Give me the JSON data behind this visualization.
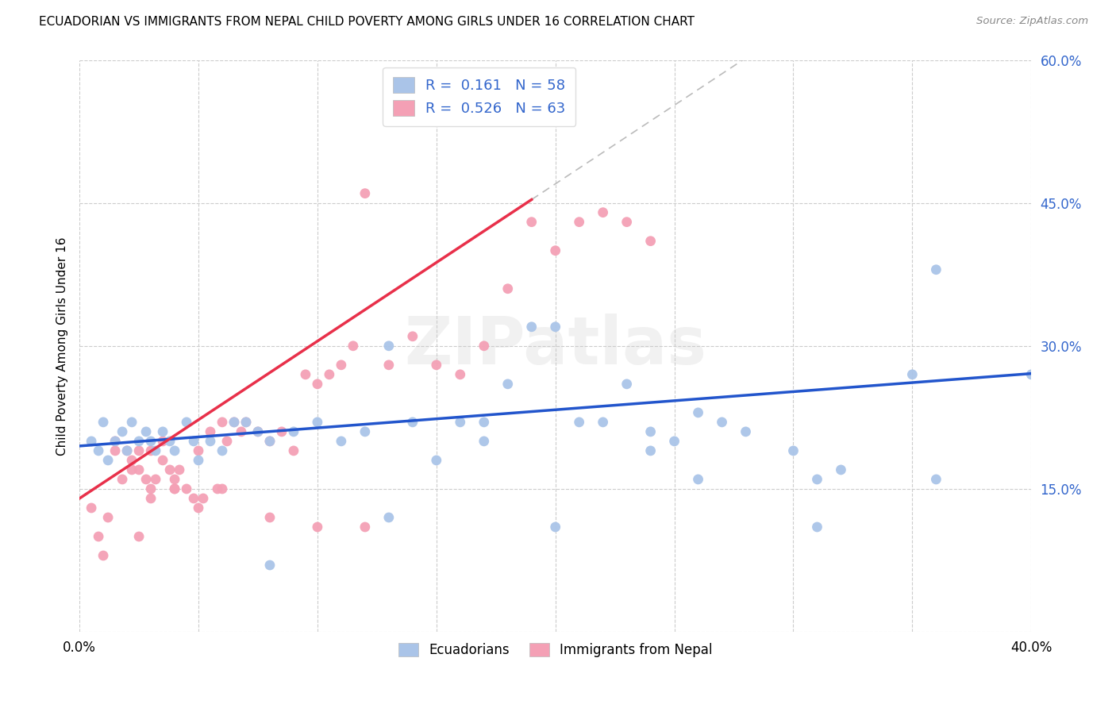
{
  "title": "ECUADORIAN VS IMMIGRANTS FROM NEPAL CHILD POVERTY AMONG GIRLS UNDER 16 CORRELATION CHART",
  "source": "Source: ZipAtlas.com",
  "ylabel": "Child Poverty Among Girls Under 16",
  "xlim": [
    0,
    0.4
  ],
  "ylim": [
    0,
    0.6
  ],
  "r_ecuadorian": 0.161,
  "n_ecuadorian": 58,
  "r_nepal": 0.526,
  "n_nepal": 63,
  "color_ecuadorian": "#aac4e8",
  "color_nepal": "#f4a0b5",
  "line_color_ecuadorian": "#2255cc",
  "line_color_nepal": "#e8304a",
  "blue_intercept": 0.195,
  "blue_slope": 0.19,
  "pink_intercept": 0.14,
  "pink_slope": 1.65,
  "blue_scatter_x": [
    0.005,
    0.008,
    0.01,
    0.012,
    0.015,
    0.018,
    0.02,
    0.022,
    0.025,
    0.028,
    0.03,
    0.032,
    0.035,
    0.038,
    0.04,
    0.045,
    0.048,
    0.05,
    0.055,
    0.06,
    0.065,
    0.07,
    0.075,
    0.08,
    0.09,
    0.1,
    0.11,
    0.12,
    0.13,
    0.14,
    0.15,
    0.16,
    0.17,
    0.18,
    0.19,
    0.2,
    0.21,
    0.22,
    0.23,
    0.24,
    0.25,
    0.26,
    0.27,
    0.28,
    0.3,
    0.31,
    0.32,
    0.35,
    0.36,
    0.13,
    0.2,
    0.24,
    0.08,
    0.17,
    0.26,
    0.31,
    0.36,
    0.4
  ],
  "blue_scatter_y": [
    0.2,
    0.19,
    0.22,
    0.18,
    0.2,
    0.21,
    0.19,
    0.22,
    0.2,
    0.21,
    0.2,
    0.19,
    0.21,
    0.2,
    0.19,
    0.22,
    0.2,
    0.18,
    0.2,
    0.19,
    0.22,
    0.22,
    0.21,
    0.2,
    0.21,
    0.22,
    0.2,
    0.21,
    0.3,
    0.22,
    0.18,
    0.22,
    0.22,
    0.26,
    0.32,
    0.32,
    0.22,
    0.22,
    0.26,
    0.21,
    0.2,
    0.23,
    0.22,
    0.21,
    0.19,
    0.16,
    0.17,
    0.27,
    0.38,
    0.12,
    0.11,
    0.19,
    0.07,
    0.2,
    0.16,
    0.11,
    0.16,
    0.27
  ],
  "pink_scatter_x": [
    0.005,
    0.008,
    0.01,
    0.012,
    0.015,
    0.015,
    0.018,
    0.02,
    0.022,
    0.022,
    0.025,
    0.025,
    0.028,
    0.03,
    0.03,
    0.032,
    0.035,
    0.035,
    0.038,
    0.04,
    0.04,
    0.042,
    0.045,
    0.048,
    0.05,
    0.052,
    0.055,
    0.058,
    0.06,
    0.062,
    0.065,
    0.068,
    0.07,
    0.075,
    0.08,
    0.085,
    0.09,
    0.095,
    0.1,
    0.105,
    0.11,
    0.115,
    0.12,
    0.13,
    0.14,
    0.15,
    0.16,
    0.17,
    0.18,
    0.19,
    0.2,
    0.21,
    0.22,
    0.23,
    0.24,
    0.025,
    0.03,
    0.04,
    0.05,
    0.06,
    0.08,
    0.1,
    0.12
  ],
  "pink_scatter_y": [
    0.13,
    0.1,
    0.08,
    0.12,
    0.19,
    0.2,
    0.16,
    0.19,
    0.18,
    0.17,
    0.19,
    0.17,
    0.16,
    0.15,
    0.19,
    0.16,
    0.18,
    0.2,
    0.17,
    0.16,
    0.15,
    0.17,
    0.15,
    0.14,
    0.19,
    0.14,
    0.21,
    0.15,
    0.22,
    0.2,
    0.22,
    0.21,
    0.22,
    0.21,
    0.2,
    0.21,
    0.19,
    0.27,
    0.26,
    0.27,
    0.28,
    0.3,
    0.46,
    0.28,
    0.31,
    0.28,
    0.27,
    0.3,
    0.36,
    0.43,
    0.4,
    0.43,
    0.44,
    0.43,
    0.41,
    0.1,
    0.14,
    0.15,
    0.13,
    0.15,
    0.12,
    0.11,
    0.11
  ]
}
